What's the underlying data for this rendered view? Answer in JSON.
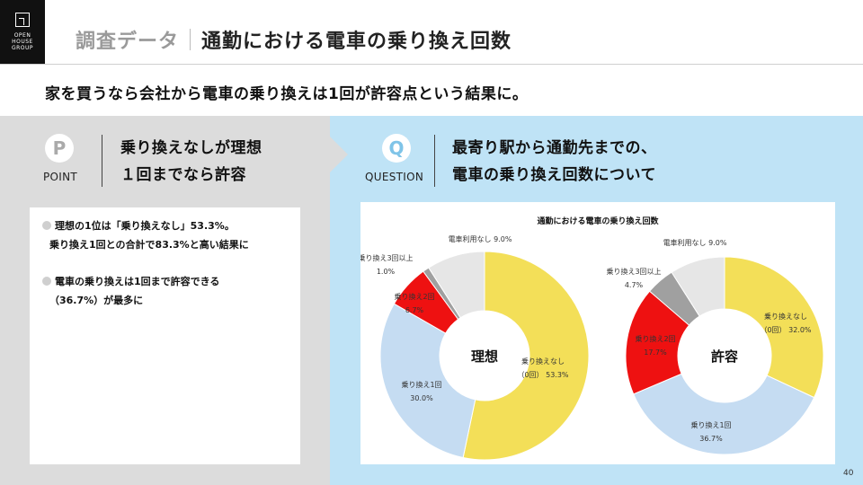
{
  "logo": {
    "lines": [
      "OPEN",
      "HOUSE",
      "GROUP"
    ]
  },
  "header": {
    "category": "調査データ",
    "title": "通勤における電車の乗り換え回数"
  },
  "lead": "家を買うなら会社から電車の乗り換えは1回が許容点という結果に。",
  "point": {
    "badge": "P",
    "label": "POINT",
    "line1": "乗り換えなしが理想",
    "line2": "１回までなら許容",
    "bullets": [
      {
        "line1": "理想の1位は「乗り換えなし」53.3%。",
        "line2": "乗り換え1回との合計で83.3%と高い結果に"
      },
      {
        "line1": "電車の乗り換えは1回まで許容できる",
        "line2": "（36.7%）が最多に"
      }
    ]
  },
  "question": {
    "badge": "Q",
    "label": "QUESTION",
    "line1": "最寄り駅から通勤先までの、",
    "line2": "電車の乗り換え回数について"
  },
  "chart_data": {
    "type": "pie",
    "title": "通勤における電車の乗り換え回数",
    "charts": [
      {
        "center_label": "理想",
        "slices": [
          {
            "name": "乗り換えなし（0回）",
            "value": 53.3,
            "color": "#f3df58",
            "lines": [
              "乗り換えなし",
              "（0回）  53.3%"
            ]
          },
          {
            "name": "乗り換え1回",
            "value": 30.0,
            "color": "#c5dcf2",
            "lines": [
              "乗り換え1回",
              "30.0%"
            ]
          },
          {
            "name": "乗り換え2回",
            "value": 6.7,
            "color": "#ee1111",
            "lines": [
              "乗り換え2回",
              "6.7%"
            ]
          },
          {
            "name": "乗り換え3回以上",
            "value": 1.0,
            "color": "#a0a0a0",
            "lines": [
              "乗り換え3回以上",
              "1.0%"
            ]
          },
          {
            "name": "電車利用なし",
            "value": 9.0,
            "color": "#e6e6e6",
            "lines": [
              "電車利用なし  9.0%"
            ]
          }
        ]
      },
      {
        "center_label": "許容",
        "slices": [
          {
            "name": "乗り換えなし（0回）",
            "value": 32.0,
            "color": "#f3df58",
            "lines": [
              "乗り換えなし",
              "（0回）  32.0%"
            ]
          },
          {
            "name": "乗り換え1回",
            "value": 36.7,
            "color": "#c5dcf2",
            "lines": [
              "乗り換え1回",
              "36.7%"
            ]
          },
          {
            "name": "乗り換え2回",
            "value": 17.7,
            "color": "#ee1111",
            "lines": [
              "乗り換え2回",
              "17.7%"
            ]
          },
          {
            "name": "乗り換え3回以上",
            "value": 4.7,
            "color": "#a0a0a0",
            "lines": [
              "乗り換え3回以上",
              "4.7%"
            ]
          },
          {
            "name": "電車利用なし",
            "value": 9.0,
            "color": "#e6e6e6",
            "lines": [
              "電車利用なし  9.0%"
            ]
          }
        ]
      }
    ]
  },
  "page_number": "40"
}
